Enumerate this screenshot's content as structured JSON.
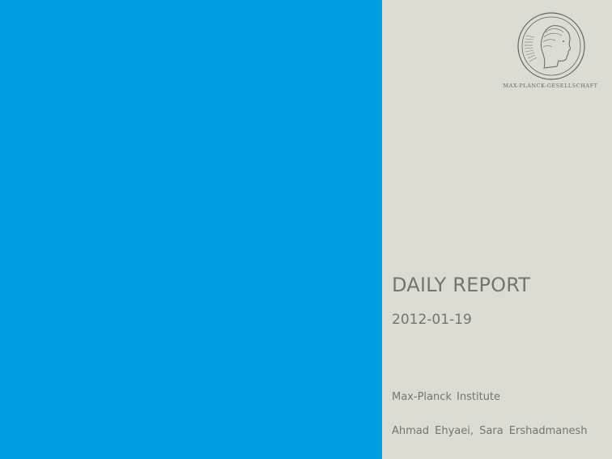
{
  "colors": {
    "blue_panel": "#009de0",
    "gray_panel": "#dcdcd3",
    "text": "#747474"
  },
  "logo": {
    "icon": "minerva-seal-icon",
    "wordmark": "MAX-PLANCK-GESELLSCHAFT"
  },
  "title": "DAILY REPORT",
  "date": "2012-01-19",
  "institute": "Max-Planck Institute",
  "authors": "Ahmad Ehyaei, Sara Ershadmanesh"
}
